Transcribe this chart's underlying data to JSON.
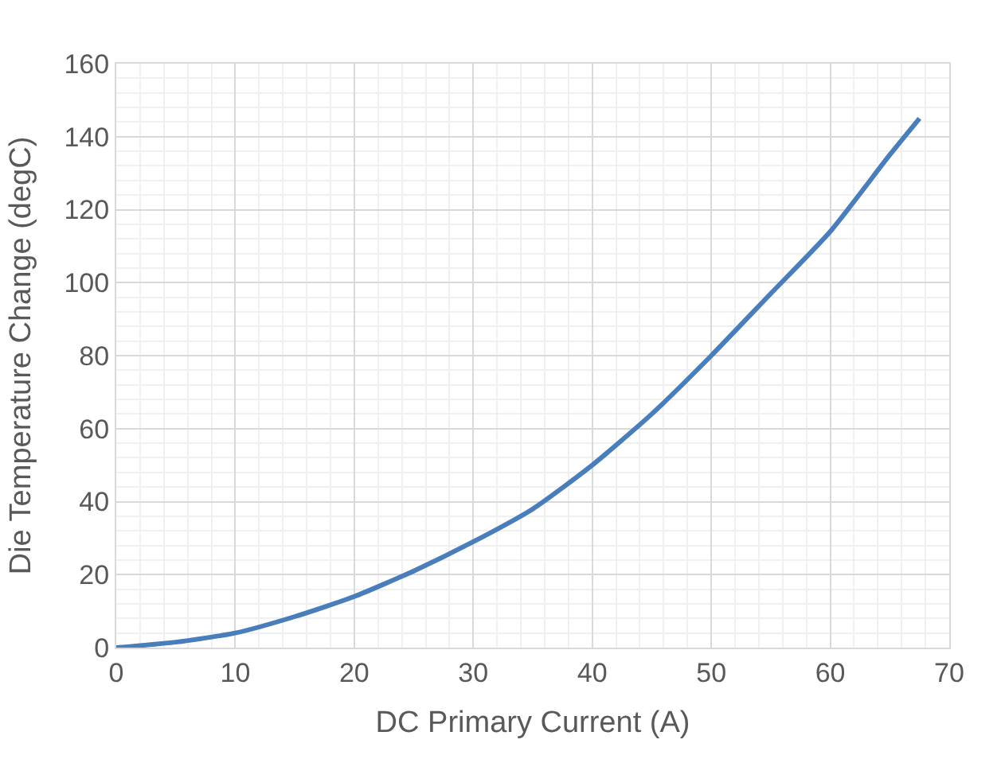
{
  "chart_data": {
    "type": "line",
    "xlabel": "DC Primary Current (A)",
    "ylabel": "Die Temperature Change (degC)",
    "x": [
      0,
      5,
      10,
      15,
      20,
      25,
      30,
      35,
      40,
      45,
      50,
      55,
      60,
      65,
      67.5
    ],
    "series": [
      {
        "color": "#4a7ebb",
        "values": [
          0,
          1.5,
          4,
          8.5,
          14,
          21,
          29,
          38,
          50,
          64,
          80,
          97,
          114,
          135,
          145
        ]
      }
    ],
    "xlim": [
      0,
      70
    ],
    "xticks": [
      0,
      10,
      20,
      30,
      40,
      50,
      60,
      70
    ],
    "ylim": [
      0,
      160
    ],
    "yticks": [
      0,
      20,
      40,
      60,
      80,
      100,
      120,
      140,
      160
    ],
    "grid": true,
    "marker": "none",
    "line_style": "solid"
  }
}
